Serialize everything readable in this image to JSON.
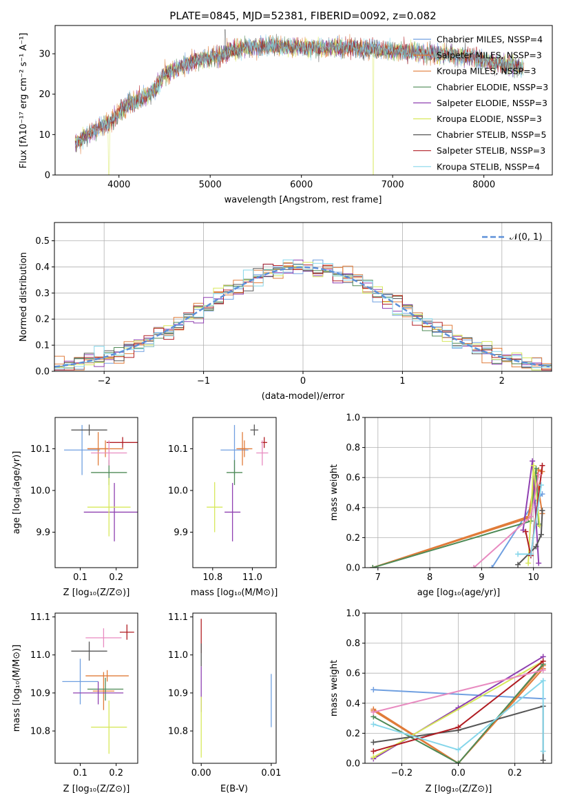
{
  "colors": {
    "grid": "#b0b0b0",
    "normal": "#5b8fd8",
    "series": [
      "#6f9fe0",
      "#e07b39",
      "#e07b39",
      "#4e8a56",
      "#8e3fb0",
      "#d7e85a",
      "#555555",
      "#b01c22",
      "#85d6ea"
    ]
  },
  "chart_data": [
    {
      "id": "spectrum",
      "type": "line",
      "title": "PLATE=0845, MJD=52381, FIBERID=0092, z=0.082",
      "xlabel": "wavelength [Angstrom, rest frame]",
      "ylabel": "Flux [fλ10⁻¹⁷ erg cm⁻² s⁻¹ A⁻¹]",
      "xlim": [
        3300,
        8750
      ],
      "ylim": [
        0,
        37
      ],
      "xticks": [
        "4000",
        "5000",
        "6000",
        "7000",
        "8000"
      ],
      "yticks": [
        "0",
        "10",
        "20",
        "30"
      ],
      "grid": false,
      "legend_position": "top-right",
      "legend": [
        {
          "label": "Chabrier MILES, NSSP=4",
          "color": "#6f9fe0"
        },
        {
          "label": "Salpeter MILES, NSSP=3",
          "color": "#e07b39"
        },
        {
          "label": "Kroupa MILES, NSSP=3",
          "color": "#e07b39"
        },
        {
          "label": "Chabrier ELODIE, NSSP=3",
          "color": "#4e8a56"
        },
        {
          "label": "Salpeter ELODIE, NSSP=3",
          "color": "#8e3fb0"
        },
        {
          "label": "Kroupa ELODIE, NSSP=3",
          "color": "#d7e85a"
        },
        {
          "label": "Chabrier STELIB, NSSP=5",
          "color": "#555555"
        },
        {
          "label": "Salpeter STELIB, NSSP=3",
          "color": "#b01c22"
        },
        {
          "label": "Kroupa STELIB, NSSP=4",
          "color": "#85d6ea"
        }
      ],
      "continuum": [
        [
          3520,
          8
        ],
        [
          3600,
          9
        ],
        [
          3700,
          10.5
        ],
        [
          3800,
          12
        ],
        [
          3900,
          13
        ],
        [
          4000,
          15.5
        ],
        [
          4100,
          17.5
        ],
        [
          4200,
          18.5
        ],
        [
          4300,
          19.5
        ],
        [
          4400,
          21.5
        ],
        [
          4500,
          25
        ],
        [
          4600,
          26
        ],
        [
          4700,
          27
        ],
        [
          4800,
          28
        ],
        [
          4900,
          28.5
        ],
        [
          5000,
          29
        ],
        [
          5100,
          29.5
        ],
        [
          5200,
          30.5
        ],
        [
          5300,
          31
        ],
        [
          5400,
          31.5
        ],
        [
          5500,
          31.7
        ],
        [
          5600,
          32
        ],
        [
          5700,
          32
        ],
        [
          5800,
          31.8
        ],
        [
          6000,
          31.6
        ],
        [
          6200,
          31.5
        ],
        [
          6400,
          31.5
        ],
        [
          6600,
          31.4
        ],
        [
          6800,
          31.3
        ],
        [
          7000,
          30.8
        ],
        [
          7200,
          30.5
        ],
        [
          7400,
          30
        ],
        [
          7600,
          29.7
        ],
        [
          7800,
          29.5
        ],
        [
          8000,
          28.5
        ],
        [
          8200,
          27.5
        ],
        [
          8400,
          26.5
        ]
      ]
    },
    {
      "id": "residuals",
      "type": "histogram",
      "xlabel": "(data-model)/error",
      "ylabel": "Normed distribution",
      "xlim": [
        -2.5,
        2.5
      ],
      "ylim": [
        0,
        0.57
      ],
      "xticks": [
        "−2",
        "−1",
        "0",
        "1",
        "2"
      ],
      "yticks": [
        "0.0",
        "0.1",
        "0.2",
        "0.3",
        "0.4",
        "0.5"
      ],
      "grid": true,
      "legend_position": "top-right",
      "legend": [
        {
          "label": "𝒩(0, 1)",
          "color": "#5b8fd8",
          "style": "dashed"
        }
      ],
      "bin_width": 0.1
    },
    {
      "id": "age-vs-Z",
      "type": "scatter",
      "xlabel": "Z [log₁₀(Z/Z⊙)]",
      "ylabel": "age  [log₁₀(age/yr)]",
      "xlim": [
        0.03,
        0.26
      ],
      "ylim": [
        9.815,
        10.175
      ],
      "xticks": [
        "0.1",
        "0.2"
      ],
      "yticks": [
        "9.9",
        "10.0",
        "10.1"
      ],
      "points": [
        {
          "x": 0.105,
          "y": 10.097,
          "xerr": 0.05,
          "yerr": 0.06,
          "color": "#6f9fe0"
        },
        {
          "x": 0.17,
          "y": 10.1,
          "xerr": 0.05,
          "yerr": 0.02,
          "color": "#e07b39"
        },
        {
          "x": 0.15,
          "y": 10.1,
          "xerr": 0.03,
          "yerr": 0.04,
          "color": "#e07b39"
        },
        {
          "x": 0.18,
          "y": 10.043,
          "xerr": 0.05,
          "yerr": 0.03,
          "color": "#4e8a56"
        },
        {
          "x": 0.195,
          "y": 9.948,
          "xerr": 0.085,
          "yerr": 0.07,
          "color": "#8e3fb0"
        },
        {
          "x": 0.18,
          "y": 9.96,
          "xerr": 0.06,
          "yerr": 0.07,
          "color": "#d7e85a"
        },
        {
          "x": 0.125,
          "y": 10.145,
          "xerr": 0.05,
          "yerr": 0.013,
          "color": "#555555"
        },
        {
          "x": 0.218,
          "y": 10.115,
          "xerr": 0.045,
          "yerr": 0.013,
          "color": "#b01c22"
        },
        {
          "x": 0.18,
          "y": 10.09,
          "xerr": 0.05,
          "yerr": 0.03,
          "color": "#e88ac0"
        }
      ]
    },
    {
      "id": "age-vs-mass",
      "type": "scatter",
      "xlabel": "mass [log₁₀(M/M⊙)]",
      "ylabel": "",
      "xlim": [
        10.7,
        11.12
      ],
      "ylim": [
        9.815,
        10.175
      ],
      "xticks": [
        "10.8",
        "11.0"
      ],
      "yticks": [
        "9.9",
        "10.0",
        "10.1"
      ],
      "points": [
        {
          "x": 10.91,
          "y": 10.097,
          "xerr": 0.07,
          "yerr": 0.06,
          "color": "#6f9fe0"
        },
        {
          "x": 10.96,
          "y": 10.1,
          "xerr": 0.04,
          "yerr": 0.02,
          "color": "#e07b39"
        },
        {
          "x": 10.95,
          "y": 10.1,
          "xerr": 0.02,
          "yerr": 0.04,
          "color": "#e07b39"
        },
        {
          "x": 10.91,
          "y": 10.043,
          "xerr": 0.04,
          "yerr": 0.03,
          "color": "#4e8a56"
        },
        {
          "x": 10.9,
          "y": 9.948,
          "xerr": 0.04,
          "yerr": 0.07,
          "color": "#8e3fb0"
        },
        {
          "x": 10.81,
          "y": 9.96,
          "xerr": 0.04,
          "yerr": 0.06,
          "color": "#d7e85a"
        },
        {
          "x": 11.01,
          "y": 10.145,
          "xerr": 0.02,
          "yerr": 0.013,
          "color": "#555555"
        },
        {
          "x": 11.06,
          "y": 10.115,
          "xerr": 0.015,
          "yerr": 0.013,
          "color": "#b01c22"
        },
        {
          "x": 11.05,
          "y": 10.09,
          "xerr": 0.03,
          "yerr": 0.03,
          "color": "#e88ac0"
        }
      ]
    },
    {
      "id": "weight-vs-age",
      "type": "line",
      "xlabel": "age  [log₁₀(age/yr)]",
      "ylabel": "mass weight",
      "xlim": [
        6.75,
        10.35
      ],
      "ylim": [
        0,
        1
      ],
      "xticks": [
        "7",
        "8",
        "9",
        "10"
      ],
      "yticks": [
        "0.0",
        "0.2",
        "0.4",
        "0.6",
        "0.8",
        "1.0"
      ],
      "grid": true,
      "series": [
        {
          "color": "#6f9fe0",
          "points": [
            [
              9.2,
              0
            ],
            [
              10.0,
              0.43
            ],
            [
              10.17,
              0.49
            ]
          ]
        },
        {
          "color": "#e07b39",
          "points": [
            [
              6.9,
              0
            ],
            [
              9.9,
              0.33
            ],
            [
              10.1,
              0.65
            ],
            [
              10.17,
              0.64
            ]
          ]
        },
        {
          "color": "#e07b39",
          "points": [
            [
              6.9,
              0
            ],
            [
              9.9,
              0.34
            ],
            [
              10.05,
              0.63
            ],
            [
              10.17,
              0.36
            ]
          ]
        },
        {
          "color": "#4e8a56",
          "points": [
            [
              6.9,
              0
            ],
            [
              9.95,
              0.31
            ],
            [
              10.05,
              0.66
            ],
            [
              10.1,
              0.29
            ]
          ]
        },
        {
          "color": "#8e3fb0",
          "points": [
            [
              9.8,
              0.25
            ],
            [
              9.98,
              0.71
            ],
            [
              10.1,
              0.03
            ]
          ]
        },
        {
          "color": "#d7e85a",
          "points": [
            [
              9.9,
              0.03
            ],
            [
              10.0,
              0.68
            ],
            [
              10.12,
              0.28
            ]
          ]
        },
        {
          "color": "#555555",
          "points": [
            [
              9.7,
              0.02
            ],
            [
              10.05,
              0.14
            ],
            [
              10.15,
              0.22
            ],
            [
              10.17,
              0.38
            ]
          ]
        },
        {
          "color": "#b01c22",
          "points": [
            [
              9.85,
              0.24
            ],
            [
              9.95,
              0.08
            ],
            [
              10.17,
              0.68
            ]
          ]
        },
        {
          "color": "#85d6ea",
          "points": [
            [
              9.7,
              0.09
            ],
            [
              9.95,
              0.09
            ],
            [
              10.15,
              0.55
            ]
          ]
        },
        {
          "color": "#e88ac0",
          "points": [
            [
              8.85,
              0
            ],
            [
              9.95,
              0.34
            ],
            [
              10.1,
              0.62
            ]
          ]
        }
      ]
    },
    {
      "id": "mass-vs-Z",
      "type": "scatter",
      "xlabel": "Z [log₁₀(Z/Z⊙)]",
      "ylabel": "mass [log₁₀(M/M⊙)]",
      "xlim": [
        0.03,
        0.26
      ],
      "ylim": [
        10.715,
        11.11
      ],
      "xticks": [
        "0.1",
        "0.2"
      ],
      "yticks": [
        "10.8",
        "10.9",
        "11.0",
        "11.1"
      ],
      "points": [
        {
          "x": 0.1,
          "y": 10.93,
          "xerr": 0.05,
          "yerr": 0.06,
          "color": "#6f9fe0"
        },
        {
          "x": 0.175,
          "y": 10.945,
          "xerr": 0.06,
          "yerr": 0.015,
          "color": "#e07b39"
        },
        {
          "x": 0.165,
          "y": 10.905,
          "xerr": 0.03,
          "yerr": 0.05,
          "color": "#e07b39"
        },
        {
          "x": 0.17,
          "y": 10.91,
          "xerr": 0.05,
          "yerr": 0.03,
          "color": "#4e8a56"
        },
        {
          "x": 0.15,
          "y": 10.9,
          "xerr": 0.07,
          "yerr": 0.03,
          "color": "#8e3fb0"
        },
        {
          "x": 0.18,
          "y": 10.81,
          "xerr": 0.05,
          "yerr": 0.07,
          "color": "#d7e85a"
        },
        {
          "x": 0.125,
          "y": 11.01,
          "xerr": 0.05,
          "yerr": 0.025,
          "color": "#555555"
        },
        {
          "x": 0.23,
          "y": 11.06,
          "xerr": 0.02,
          "yerr": 0.02,
          "color": "#b01c22"
        },
        {
          "x": 0.165,
          "y": 11.045,
          "xerr": 0.05,
          "yerr": 0.025,
          "color": "#e88ac0"
        }
      ]
    },
    {
      "id": "mass-vs-ebv",
      "type": "scatter",
      "xlabel": "E(B-V)",
      "ylabel": "",
      "xlim": [
        -0.0012,
        0.0107
      ],
      "ylim": [
        10.715,
        11.11
      ],
      "xticks": [
        "0.00",
        "0.01"
      ],
      "yticks": [
        "10.8",
        "10.9",
        "11.0",
        "11.1"
      ],
      "points": [
        {
          "x": 0.0,
          "y": 11.05,
          "xerr": 0,
          "yerr": 0.045,
          "color": "#b01c22"
        },
        {
          "x": 0.0,
          "y": 11.0,
          "xerr": 0,
          "yerr": 0.03,
          "color": "#555555"
        },
        {
          "x": 0.0,
          "y": 10.91,
          "xerr": 0,
          "yerr": 0.06,
          "color": "#8e3fb0"
        },
        {
          "x": 0.0,
          "y": 10.81,
          "xerr": 0,
          "yerr": 0.08,
          "color": "#d7e85a"
        },
        {
          "x": 0.01,
          "y": 10.88,
          "xerr": 0,
          "yerr": 0.07,
          "color": "#6f9fe0"
        }
      ]
    },
    {
      "id": "weight-vs-Z",
      "type": "line",
      "xlabel": "Z [log₁₀(Z/Z⊙)]",
      "ylabel": "mass weight",
      "xlim": [
        -0.33,
        0.33
      ],
      "ylim": [
        0,
        1
      ],
      "xticks": [
        "−0.2",
        "0.0",
        "0.2"
      ],
      "yticks": [
        "0.0",
        "0.2",
        "0.4",
        "0.6",
        "0.8",
        "1.0"
      ],
      "grid": true,
      "series": [
        {
          "color": "#6f9fe0",
          "points": [
            [
              -0.3,
              0.49
            ],
            [
              0.3,
              0.43
            ]
          ]
        },
        {
          "color": "#e07b39",
          "points": [
            [
              -0.3,
              0.36
            ],
            [
              0.0,
              0.0
            ],
            [
              0.3,
              0.65
            ]
          ]
        },
        {
          "color": "#e07b39",
          "points": [
            [
              -0.3,
              0.35
            ],
            [
              0.0,
              0.0
            ],
            [
              0.3,
              0.63
            ]
          ]
        },
        {
          "color": "#4e8a56",
          "points": [
            [
              -0.3,
              0.31
            ],
            [
              0.0,
              0.0
            ],
            [
              0.3,
              0.66
            ]
          ]
        },
        {
          "color": "#8e3fb0",
          "points": [
            [
              -0.3,
              0.03
            ],
            [
              0.0,
              0.37
            ],
            [
              0.3,
              0.71
            ]
          ]
        },
        {
          "color": "#d7e85a",
          "points": [
            [
              -0.3,
              0.04
            ],
            [
              0.3,
              0.68
            ]
          ]
        },
        {
          "color": "#555555",
          "points": [
            [
              -0.3,
              0.14
            ],
            [
              0.0,
              0.22
            ],
            [
              0.3,
              0.38
            ],
            [
              0.3,
              0.02
            ]
          ]
        },
        {
          "color": "#b01c22",
          "points": [
            [
              -0.3,
              0.08
            ],
            [
              0.0,
              0.24
            ],
            [
              0.3,
              0.68
            ]
          ]
        },
        {
          "color": "#85d6ea",
          "points": [
            [
              -0.3,
              0.26
            ],
            [
              0.0,
              0.09
            ],
            [
              0.3,
              0.55
            ],
            [
              0.3,
              0.08
            ]
          ]
        },
        {
          "color": "#e88ac0",
          "points": [
            [
              -0.3,
              0.34
            ],
            [
              0.3,
              0.62
            ]
          ]
        }
      ]
    }
  ]
}
